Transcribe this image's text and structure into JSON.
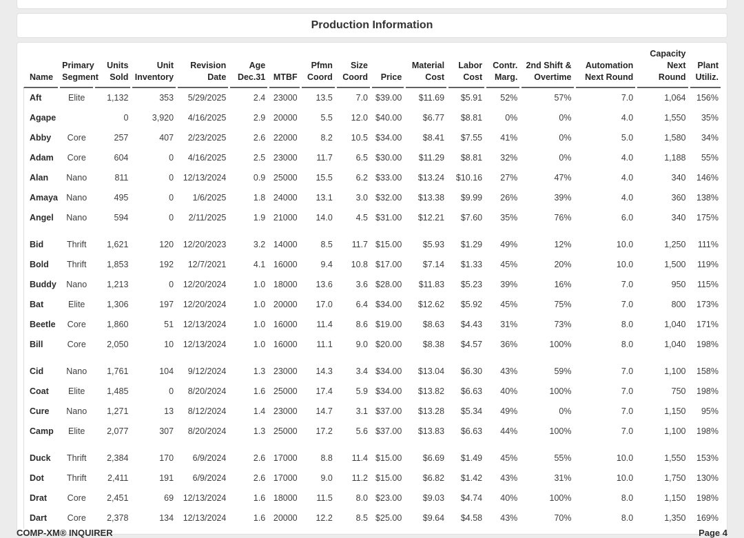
{
  "page": {
    "title": "Production Information",
    "footer_left": "COMP-XM® INQUIRER",
    "footer_right": "Page 4"
  },
  "colors": {
    "page_background": "#ececec",
    "card_background": "#ffffff",
    "card_border": "#e0e0e0",
    "header_rule": "#616161",
    "body_text": "#3d3d3d"
  },
  "table": {
    "columns": [
      "Name",
      "Primary\nSegment",
      "Units\nSold",
      "Unit\nInventory",
      "Revision\nDate",
      "Age\nDec.31",
      "MTBF",
      "Pfmn\nCoord",
      "Size\nCoord",
      "Price",
      "Material\nCost",
      "Labor\nCost",
      "Contr.\nMarg.",
      "2nd Shift &\nOvertime",
      "Automation\nNext Round",
      "Capacity\nNext Round",
      "Plant\nUtiliz."
    ],
    "groups": [
      {
        "rows": [
          [
            "Aft",
            "Elite",
            "1,132",
            "353",
            "5/29/2025",
            "2.4",
            "23000",
            "13.5",
            "7.0",
            "$39.00",
            "$11.69",
            "$5.91",
            "52%",
            "57%",
            "7.0",
            "1,064",
            "156%"
          ],
          [
            "Agape",
            "",
            "0",
            "3,920",
            "4/16/2025",
            "2.9",
            "20000",
            "5.5",
            "12.0",
            "$40.00",
            "$6.77",
            "$8.81",
            "0%",
            "0%",
            "4.0",
            "1,550",
            "35%"
          ],
          [
            "Abby",
            "Core",
            "257",
            "407",
            "2/23/2025",
            "2.6",
            "22000",
            "8.2",
            "10.5",
            "$34.00",
            "$8.41",
            "$7.55",
            "41%",
            "0%",
            "5.0",
            "1,580",
            "34%"
          ],
          [
            "Adam",
            "Core",
            "604",
            "0",
            "4/16/2025",
            "2.5",
            "23000",
            "11.7",
            "6.5",
            "$30.00",
            "$11.29",
            "$8.81",
            "32%",
            "0%",
            "4.0",
            "1,188",
            "55%"
          ],
          [
            "Alan",
            "Nano",
            "811",
            "0",
            "12/13/2024",
            "0.9",
            "25000",
            "15.5",
            "6.2",
            "$33.00",
            "$13.24",
            "$10.16",
            "27%",
            "47%",
            "4.0",
            "340",
            "146%"
          ],
          [
            "Amaya",
            "Nano",
            "495",
            "0",
            "1/6/2025",
            "1.8",
            "24000",
            "13.1",
            "3.0",
            "$32.00",
            "$13.38",
            "$9.99",
            "26%",
            "39%",
            "4.0",
            "360",
            "138%"
          ],
          [
            "Angel",
            "Nano",
            "594",
            "0",
            "2/11/2025",
            "1.9",
            "21000",
            "14.0",
            "4.5",
            "$31.00",
            "$12.21",
            "$7.60",
            "35%",
            "76%",
            "6.0",
            "340",
            "175%"
          ]
        ]
      },
      {
        "rows": [
          [
            "Bid",
            "Thrift",
            "1,621",
            "120",
            "12/20/2023",
            "3.2",
            "14000",
            "8.5",
            "11.7",
            "$15.00",
            "$5.93",
            "$1.29",
            "49%",
            "12%",
            "10.0",
            "1,250",
            "111%"
          ],
          [
            "Bold",
            "Thrift",
            "1,853",
            "192",
            "12/7/2021",
            "4.1",
            "16000",
            "9.4",
            "10.8",
            "$17.00",
            "$7.14",
            "$1.33",
            "45%",
            "20%",
            "10.0",
            "1,500",
            "119%"
          ],
          [
            "Buddy",
            "Nano",
            "1,213",
            "0",
            "12/20/2024",
            "1.0",
            "18000",
            "13.6",
            "3.6",
            "$28.00",
            "$11.83",
            "$5.23",
            "39%",
            "16%",
            "7.0",
            "950",
            "115%"
          ],
          [
            "Bat",
            "Elite",
            "1,306",
            "197",
            "12/20/2024",
            "1.0",
            "20000",
            "17.0",
            "6.4",
            "$34.00",
            "$12.62",
            "$5.92",
            "45%",
            "75%",
            "7.0",
            "800",
            "173%"
          ],
          [
            "Beetle",
            "Core",
            "1,860",
            "51",
            "12/13/2024",
            "1.0",
            "16000",
            "11.4",
            "8.6",
            "$19.00",
            "$8.63",
            "$4.43",
            "31%",
            "73%",
            "8.0",
            "1,040",
            "171%"
          ],
          [
            "Bill",
            "Core",
            "2,050",
            "10",
            "12/13/2024",
            "1.0",
            "16000",
            "11.1",
            "9.0",
            "$20.00",
            "$8.38",
            "$4.57",
            "36%",
            "100%",
            "8.0",
            "1,040",
            "198%"
          ]
        ]
      },
      {
        "rows": [
          [
            "Cid",
            "Nano",
            "1,761",
            "104",
            "9/12/2024",
            "1.3",
            "23000",
            "14.3",
            "3.4",
            "$34.00",
            "$13.04",
            "$6.30",
            "43%",
            "59%",
            "7.0",
            "1,100",
            "158%"
          ],
          [
            "Coat",
            "Elite",
            "1,485",
            "0",
            "8/20/2024",
            "1.6",
            "25000",
            "17.4",
            "5.9",
            "$34.00",
            "$13.82",
            "$6.63",
            "40%",
            "100%",
            "7.0",
            "750",
            "198%"
          ],
          [
            "Cure",
            "Nano",
            "1,271",
            "13",
            "8/12/2024",
            "1.4",
            "23000",
            "14.7",
            "3.1",
            "$37.00",
            "$13.28",
            "$5.34",
            "49%",
            "0%",
            "7.0",
            "1,150",
            "95%"
          ],
          [
            "Camp",
            "Elite",
            "2,077",
            "307",
            "8/20/2024",
            "1.3",
            "25000",
            "17.2",
            "5.6",
            "$37.00",
            "$13.83",
            "$6.63",
            "44%",
            "100%",
            "7.0",
            "1,100",
            "198%"
          ]
        ]
      },
      {
        "rows": [
          [
            "Duck",
            "Thrift",
            "2,384",
            "170",
            "6/9/2024",
            "2.6",
            "17000",
            "8.8",
            "11.4",
            "$15.00",
            "$6.69",
            "$1.49",
            "45%",
            "55%",
            "10.0",
            "1,550",
            "153%"
          ],
          [
            "Dot",
            "Thrift",
            "2,411",
            "191",
            "6/9/2024",
            "2.6",
            "17000",
            "9.0",
            "11.2",
            "$15.00",
            "$6.82",
            "$1.42",
            "43%",
            "31%",
            "10.0",
            "1,750",
            "130%"
          ],
          [
            "Drat",
            "Core",
            "2,451",
            "69",
            "12/13/2024",
            "1.6",
            "18000",
            "11.5",
            "8.0",
            "$23.00",
            "$9.03",
            "$4.74",
            "40%",
            "100%",
            "8.0",
            "1,150",
            "198%"
          ],
          [
            "Dart",
            "Core",
            "2,378",
            "134",
            "12/13/2024",
            "1.6",
            "20000",
            "12.2",
            "8.5",
            "$25.00",
            "$9.64",
            "$4.58",
            "43%",
            "70%",
            "8.0",
            "1,350",
            "169%"
          ]
        ]
      }
    ]
  }
}
